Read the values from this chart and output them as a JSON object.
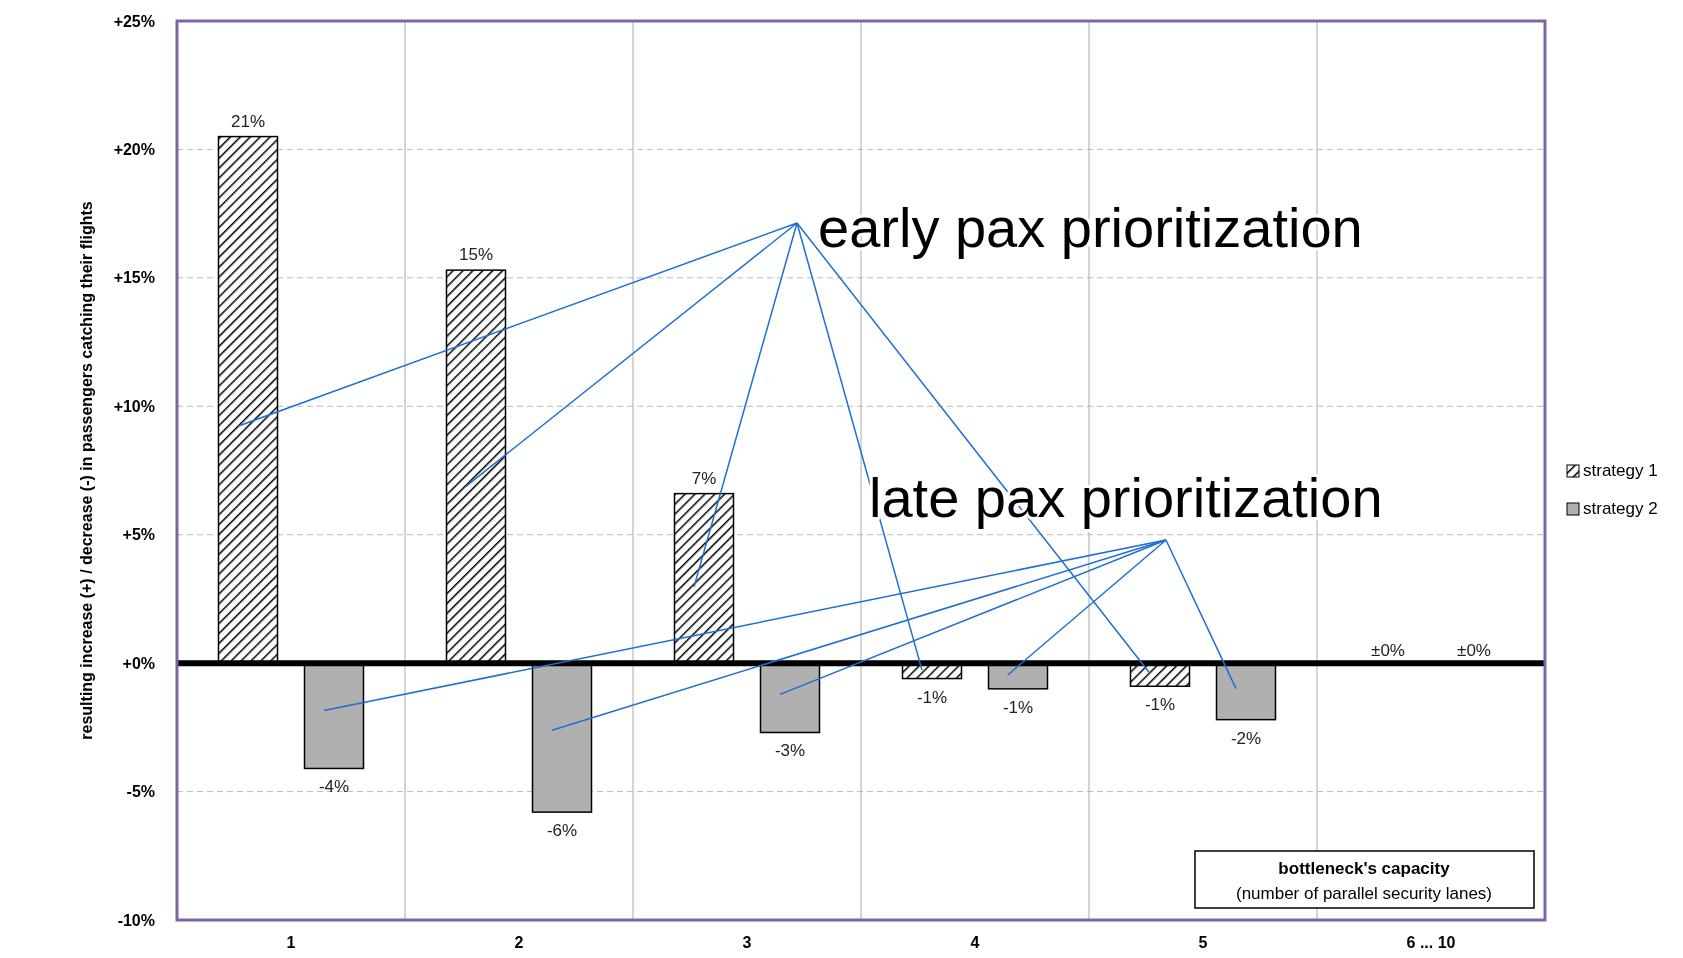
{
  "chart_data": {
    "type": "bar",
    "categories": [
      "1",
      "2",
      "3",
      "4",
      "5",
      "6 ... 10"
    ],
    "series": [
      {
        "name": "strategy 1",
        "color": "#000000",
        "values": [
          20.5,
          15.3,
          6.6,
          -0.6,
          -0.9,
          0
        ],
        "value_labels": [
          "21%",
          "15%",
          "7%",
          "-1%",
          "-1%",
          "±0%"
        ]
      },
      {
        "name": "strategy 2",
        "color": "#b0b0b0",
        "values": [
          -4.1,
          -5.8,
          -2.7,
          -1.0,
          -2.2,
          0
        ],
        "value_labels": [
          "-4%",
          "-6%",
          "-3%",
          "-1%",
          "-2%",
          "±0%"
        ]
      }
    ],
    "ylim": [
      -10,
      25
    ],
    "yticks": [
      {
        "value": -10,
        "label": "-10%"
      },
      {
        "value": -5,
        "label": "-5%"
      },
      {
        "value": 0,
        "label": "+0%"
      },
      {
        "value": 5,
        "label": "+5%"
      },
      {
        "value": 10,
        "label": "+10%"
      },
      {
        "value": 15,
        "label": "+15%"
      },
      {
        "value": 20,
        "label": "+20%"
      },
      {
        "value": 25,
        "label": "+25%"
      }
    ],
    "ylabel": "resulting increase (+) / decrease (-) in passengers catching their flights",
    "xlabel": "bottleneck's capacity (number of parallel security lanes)",
    "annotations": [
      "early pax prioritization",
      "late pax prioritization"
    ],
    "grid": true,
    "legend": "right"
  }
}
